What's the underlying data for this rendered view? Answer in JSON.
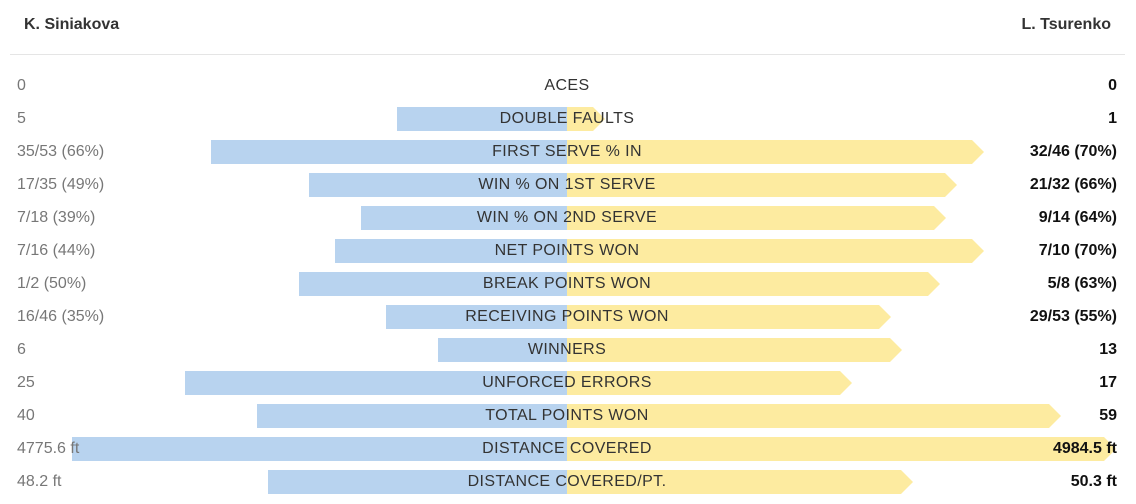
{
  "players": {
    "left": "K. Siniakova",
    "right": "L. Tsurenko"
  },
  "colors": {
    "left_bar": "#b8d3ef",
    "right_bar": "#fdeba0"
  },
  "stats": [
    {
      "label": "ACES",
      "left": "0",
      "right": "0",
      "left_share": 0,
      "right_share": 0
    },
    {
      "label": "DOUBLE FAULTS",
      "left": "5",
      "right": "1",
      "left_share": 0.33,
      "right_share": 0.07
    },
    {
      "label": "FIRST SERVE % IN",
      "left": "35/53 (66%)",
      "right": "32/46 (70%)",
      "left_share": 0.69,
      "right_share": 0.76
    },
    {
      "label": "WIN % ON 1ST SERVE",
      "left": "17/35 (49%)",
      "right": "21/32 (66%)",
      "left_share": 0.5,
      "right_share": 0.71
    },
    {
      "label": "WIN % ON 2ND SERVE",
      "left": "7/18 (39%)",
      "right": "9/14 (64%)",
      "left_share": 0.4,
      "right_share": 0.69
    },
    {
      "label": "NET POINTS WON",
      "left": "7/16 (44%)",
      "right": "7/10 (70%)",
      "left_share": 0.45,
      "right_share": 0.76
    },
    {
      "label": "BREAK POINTS WON",
      "left": "1/2 (50%)",
      "right": "5/8 (63%)",
      "left_share": 0.52,
      "right_share": 0.68
    },
    {
      "label": "RECEIVING POINTS WON",
      "left": "16/46 (35%)",
      "right": "29/53 (55%)",
      "left_share": 0.35,
      "right_share": 0.59
    },
    {
      "label": "WINNERS",
      "left": "6",
      "right": "13",
      "left_share": 0.25,
      "right_share": 0.61
    },
    {
      "label": "UNFORCED ERRORS",
      "left": "25",
      "right": "17",
      "left_share": 0.74,
      "right_share": 0.52
    },
    {
      "label": "TOTAL POINTS WON",
      "left": "40",
      "right": "59",
      "left_share": 0.6,
      "right_share": 0.9
    },
    {
      "label": "DISTANCE COVERED",
      "left": "4775.6 ft",
      "right": "4984.5 ft",
      "left_share": 0.96,
      "right_share": 1.0
    },
    {
      "label": "DISTANCE COVERED/PT.",
      "left": "48.2 ft",
      "right": "50.3 ft",
      "left_share": 0.58,
      "right_share": 0.63
    }
  ]
}
